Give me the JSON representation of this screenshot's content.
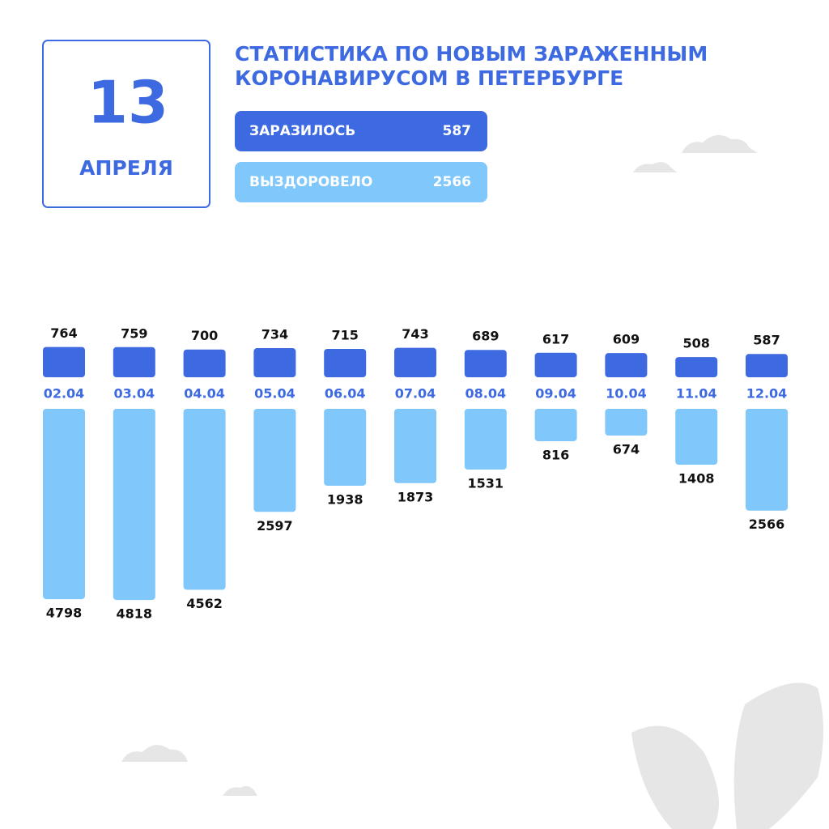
{
  "header": {
    "day": "13",
    "month": "АПРЕЛЯ",
    "title_lines": [
      "СТАТИСТИКА ПО НОВЫМ ЗАРАЖЕННЫМ",
      "КОРОНАВИРУСОМ В ПЕТЕРБУРГЕ"
    ]
  },
  "summary": [
    {
      "label": "ЗАРАЗИЛОСЬ",
      "value": 587
    },
    {
      "label": "ВЫЗДОРОВЕЛО",
      "value": 2566
    }
  ],
  "chart_data": {
    "type": "diverging-bar",
    "categories": [
      "02.04",
      "03.04",
      "04.04",
      "05.04",
      "06.04",
      "07.04",
      "08.04",
      "09.04",
      "10.04",
      "11.04",
      "12.04"
    ],
    "series": [
      {
        "name": "ЗАРАЗИЛОСЬ",
        "color": "#3e6ae1",
        "values": [
          764,
          759,
          700,
          734,
          715,
          743,
          689,
          617,
          609,
          508,
          587
        ]
      },
      {
        "name": "ВЫЗДОРОВЕЛО",
        "color": "#80c8fb",
        "values": [
          4798,
          4818,
          4562,
          2597,
          1938,
          1873,
          1531,
          816,
          674,
          1408,
          2566
        ]
      }
    ]
  }
}
